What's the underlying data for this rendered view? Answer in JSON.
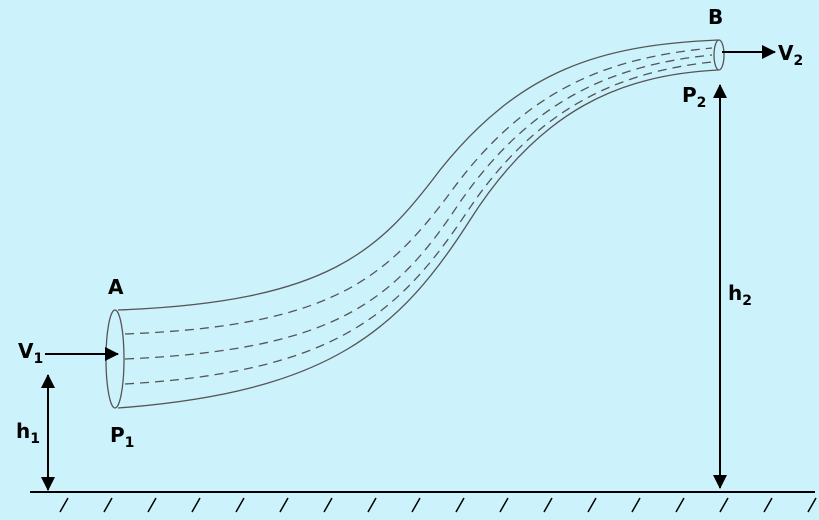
{
  "labels": {
    "point_a": {
      "text": "A"
    },
    "point_b": {
      "text": "B"
    },
    "v1": {
      "text": "V",
      "sub": "1"
    },
    "v2": {
      "text": "V",
      "sub": "2"
    },
    "p1": {
      "text": "P",
      "sub": "1"
    },
    "p2": {
      "text": "P",
      "sub": "2"
    },
    "h1": {
      "text": "h",
      "sub": "1"
    },
    "h2": {
      "text": "h",
      "sub": "2"
    }
  }
}
